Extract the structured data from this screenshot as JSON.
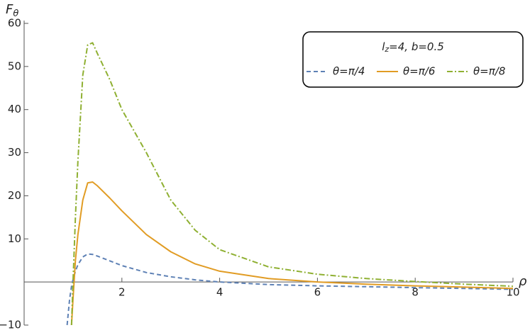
{
  "chart_data": {
    "type": "line",
    "y_label": {
      "base": "F",
      "sub": "θ"
    },
    "x_label": "ρ",
    "legend_title": {
      "base": "l",
      "sub": "z",
      "rest": "=4,  b=0.5"
    },
    "legend_position": "top-right",
    "x": [
      0.88,
      0.93,
      0.97,
      1.0,
      1.05,
      1.1,
      1.2,
      1.3,
      1.4,
      1.5,
      1.75,
      2,
      2.5,
      3,
      3.5,
      4,
      5,
      6,
      7,
      8,
      9,
      10
    ],
    "series": [
      {
        "name": "θ=π/4",
        "color": "#5e81b5",
        "dash": "6,4",
        "values": [
          -10,
          -4,
          -1,
          0.5,
          2.5,
          4,
          5.8,
          6.5,
          6.4,
          6,
          4.9,
          3.8,
          2.2,
          1.2,
          0.5,
          0,
          -0.6,
          -0.9,
          -1.1,
          -1.3,
          -1.5,
          -1.7
        ]
      },
      {
        "name": "θ=π/6",
        "color": "#e19c24",
        "dash": "none",
        "values": [
          null,
          null,
          -10,
          -4,
          5,
          11,
          19,
          23,
          23.2,
          22.3,
          19.5,
          16.5,
          11,
          7,
          4.2,
          2.5,
          0.8,
          0,
          -0.5,
          -0.9,
          -1.2,
          -1.5
        ]
      },
      {
        "name": "θ=π/8",
        "color": "#8fb032",
        "dash": "8,3,2,3",
        "values": [
          null,
          null,
          -10,
          0,
          15,
          28,
          48,
          55,
          55.5,
          53,
          47,
          40,
          30,
          19,
          12,
          7.5,
          3.5,
          1.8,
          0.8,
          0.1,
          -0.5,
          -1
        ]
      }
    ],
    "xlim": [
      0,
      10
    ],
    "ylim": [
      -10,
      60
    ],
    "xticks": [
      2,
      4,
      6,
      8,
      10
    ],
    "yticks": [
      {
        "value": -10,
        "label": "−10"
      },
      10,
      20,
      30,
      40,
      50,
      60
    ]
  }
}
